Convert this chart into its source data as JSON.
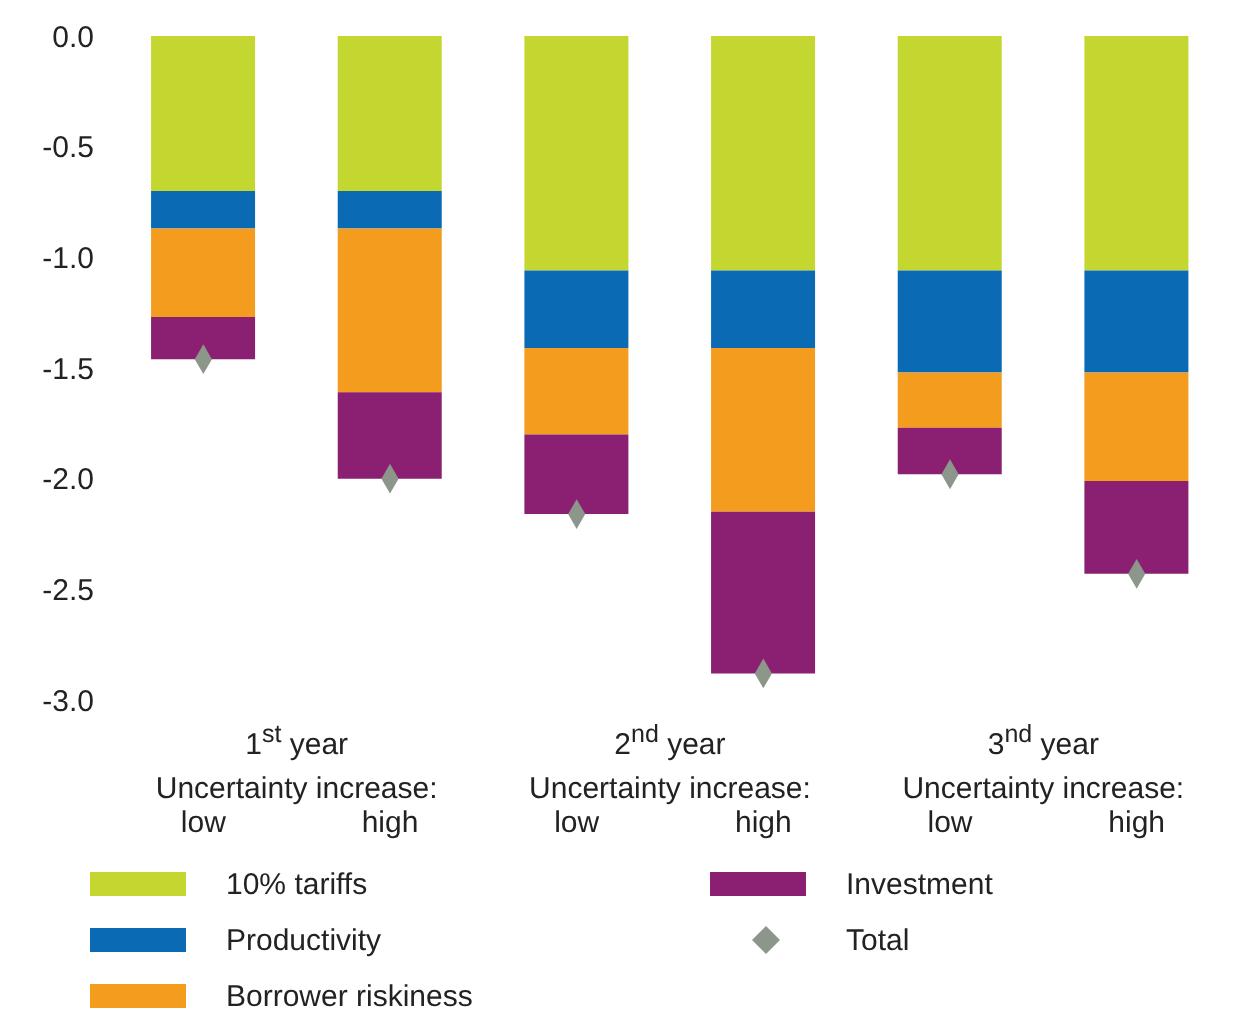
{
  "chart_data": {
    "type": "bar",
    "stacked": true,
    "categories": [
      "low",
      "high",
      "low",
      "high",
      "low",
      "high"
    ],
    "series": [
      {
        "name": "10% tariffs",
        "color": "#c3d730",
        "values": [
          -0.7,
          -0.7,
          -1.06,
          -1.06,
          -1.06,
          -1.06
        ]
      },
      {
        "name": "Productivity",
        "color": "#0a6ab4",
        "values": [
          -0.17,
          -0.17,
          -0.35,
          -0.35,
          -0.46,
          -0.46
        ]
      },
      {
        "name": "Borrower riskiness",
        "color": "#f39c1e",
        "values": [
          -0.4,
          -0.74,
          -0.39,
          -0.74,
          -0.25,
          -0.49
        ]
      },
      {
        "name": "Investment",
        "color": "#8b1f72",
        "values": [
          -0.19,
          -0.39,
          -0.36,
          -0.73,
          -0.21,
          -0.42
        ]
      },
      {
        "name": "Total",
        "color": "#8c968a",
        "type": "scatter",
        "marker": "diamond",
        "values": [
          -1.46,
          -2.0,
          -2.16,
          -2.88,
          -1.98,
          -2.43
        ]
      }
    ],
    "ylim": [
      -3,
      0
    ],
    "yticks": [
      {
        "value": 0,
        "label": "0.0"
      },
      {
        "value": -0.5,
        "label": "-0.5"
      },
      {
        "value": -1,
        "label": "-1.0"
      },
      {
        "value": -1.5,
        "label": "-1.5"
      },
      {
        "value": -2,
        "label": "-2.0"
      },
      {
        "value": -2.5,
        "label": "-2.5"
      },
      {
        "value": -3,
        "label": "-3.0"
      }
    ],
    "grid": false,
    "legend": "bottom",
    "annotations": [
      "1$^{st}$ year\nUncertainty increase:",
      "2$^{nd}$ year\nUncertainty increase:",
      "3$^{nd}$ year\nUncertainty increase:"
    ]
  }
}
